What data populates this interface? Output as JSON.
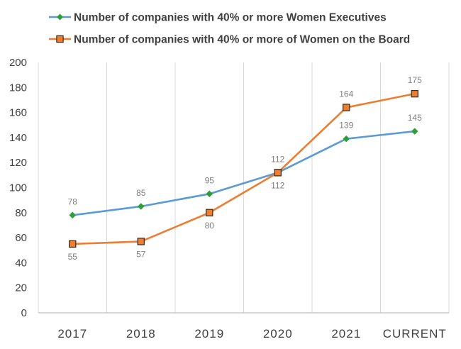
{
  "chart_data": {
    "type": "line",
    "title": "",
    "xlabel": "",
    "ylabel": "",
    "ylim": [
      0,
      200
    ],
    "ytick_step": 20,
    "grid": "vertical",
    "legend_position": "top-left",
    "categories": [
      "2017",
      "2018",
      "2019",
      "2020",
      "2021",
      "CURRENT"
    ],
    "series": [
      {
        "name": "Number of companies with 40% or more Women Executives",
        "values": [
          78,
          85,
          95,
          112,
          139,
          145
        ],
        "line_color": "#5b9bd5",
        "marker": "diamond",
        "marker_color": "#2e9e3a",
        "label_position": "above"
      },
      {
        "name": "Number of companies with 40% or more of Women on the Board",
        "values": [
          55,
          57,
          80,
          112,
          164,
          175
        ],
        "line_color": "#ed7d31",
        "marker": "square",
        "marker_color": "#ed7d31",
        "label_position": "mixed"
      }
    ]
  }
}
